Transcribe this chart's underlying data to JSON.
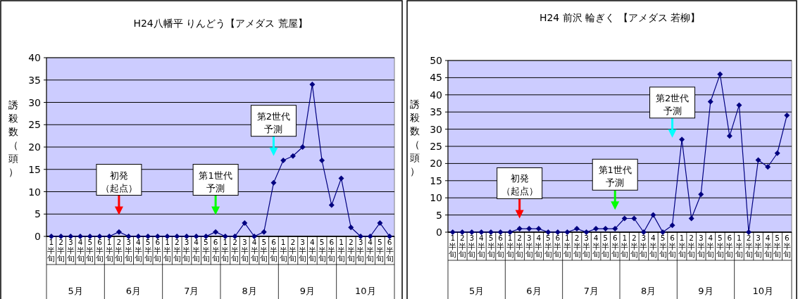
{
  "chart_data": [
    {
      "type": "line",
      "title": "H24八幡平 りんどう【アメダス  荒屋】",
      "ylabel": "誘殺数（頭）",
      "categories": [
        "1半旬",
        "2半旬",
        "3半旬",
        "4半旬",
        "5半旬",
        "6半旬",
        "1半旬",
        "2半旬",
        "3半旬",
        "4半旬",
        "5半旬",
        "6半旬",
        "1半旬",
        "2半旬",
        "3半旬",
        "4半旬",
        "5半旬",
        "6半旬",
        "1半旬",
        "2半旬",
        "3半旬",
        "4半旬",
        "5半旬",
        "6半旬",
        "1半旬",
        "2半旬",
        "3半旬",
        "4半旬",
        "5半旬",
        "6半旬",
        "1半旬",
        "2半旬",
        "3半旬",
        "4半旬",
        "5半旬",
        "6半旬"
      ],
      "series": [
        {
          "color": "#000080",
          "values": [
            0,
            0,
            0,
            0,
            0,
            0,
            0,
            1,
            0,
            0,
            0,
            0,
            0,
            0,
            0,
            0,
            0,
            1,
            0,
            0,
            3,
            0,
            1,
            12,
            17,
            18,
            20,
            34,
            17,
            7,
            13,
            2,
            0,
            0,
            3,
            0
          ]
        }
      ],
      "ylim": [
        0,
        40
      ],
      "yticks": [
        0,
        5,
        10,
        15,
        20,
        25,
        30,
        35,
        40
      ],
      "grid": "y",
      "marker": "diamond",
      "line_style": "solid",
      "annotations": [
        "初発",
        "（起点）",
        "第1世代",
        "予測",
        "第2世代",
        "予測",
        "5月",
        "6月",
        "7月",
        "8月",
        "9月",
        "10月"
      ]
    },
    {
      "type": "line",
      "title": "H24 前沢 輪ぎく 【アメダス  若柳】",
      "ylabel": "誘殺数（頭）",
      "categories": [
        "1半旬",
        "2半旬",
        "3半旬",
        "4半旬",
        "5半旬",
        "6半旬",
        "1半旬",
        "2半旬",
        "3半旬",
        "4半旬",
        "5半旬",
        "6半旬",
        "1半旬",
        "2半旬",
        "3半旬",
        "4半旬",
        "5半旬",
        "6半旬",
        "1半旬",
        "2半旬",
        "3半旬",
        "4半旬",
        "5半旬",
        "6半旬",
        "1半旬",
        "2半旬",
        "3半旬",
        "4半旬",
        "5半旬",
        "6半旬",
        "1半旬",
        "2半旬",
        "3半旬",
        "4半旬",
        "5半旬",
        "6半旬"
      ],
      "series": [
        {
          "color": "#000080",
          "values": [
            0,
            0,
            0,
            0,
            0,
            0,
            0,
            1,
            1,
            1,
            0,
            0,
            0,
            1,
            0,
            1,
            1,
            1,
            4,
            4,
            0,
            5,
            0,
            2,
            27,
            4,
            11,
            38,
            46,
            28,
            37,
            0,
            21,
            19,
            23,
            34
          ]
        }
      ],
      "ylim": [
        0,
        50
      ],
      "yticks": [
        0,
        5,
        10,
        15,
        20,
        25,
        30,
        35,
        40,
        45,
        50
      ],
      "grid": "y",
      "marker": "diamond",
      "line_style": "solid",
      "annotations": [
        "初発",
        "（起点）",
        "第1世代",
        "予測",
        "第2世代",
        "予測",
        "5月",
        "6月",
        "7月",
        "8月",
        "9月",
        "10月"
      ]
    }
  ]
}
